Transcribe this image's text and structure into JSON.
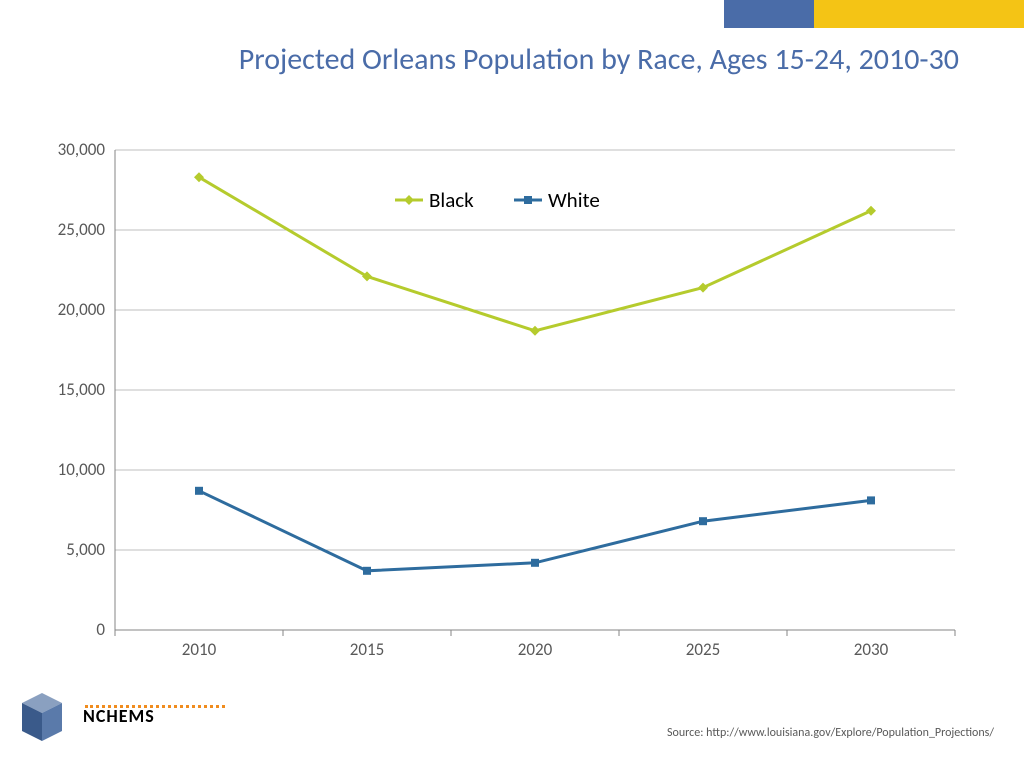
{
  "header": {
    "bar_blue_color": "#4a6ca8",
    "bar_yellow_color": "#f4c415"
  },
  "title": "Projected Orleans Population by Race, Ages 15-24, 2010-30",
  "chart": {
    "type": "line",
    "x_categories": [
      "2010",
      "2015",
      "2020",
      "2025",
      "2030"
    ],
    "y_ticks": [
      0,
      5000,
      10000,
      15000,
      20000,
      25000,
      30000
    ],
    "y_tick_labels": [
      "0",
      "5,000",
      "10,000",
      "15,000",
      "20,000",
      "25,000",
      "30,000"
    ],
    "ylim": [
      0,
      30000
    ],
    "series": [
      {
        "name": "Black",
        "color": "#b5cb2d",
        "marker": "diamond",
        "marker_size": 8,
        "values": [
          28300,
          22100,
          18700,
          21400,
          26200
        ]
      },
      {
        "name": "White",
        "color": "#2e6c9e",
        "marker": "square",
        "marker_size": 8,
        "values": [
          8700,
          3700,
          4200,
          6800,
          8100
        ]
      }
    ],
    "line_width": 3,
    "background_color": "#ffffff",
    "grid_color": "#bfbfbf",
    "axis_color": "#868686",
    "label_color": "#595959",
    "label_fontsize": 17,
    "legend_fontsize": 21,
    "legend_position": "top-center"
  },
  "source": "Source: http://www.louisiana.gov/Explore/Population_Projections/",
  "logo": {
    "text": "NCHEMS",
    "cube_dark": "#3a5a8a",
    "cube_light": "#8aa0c0",
    "dot_color": "#f08c1e"
  }
}
